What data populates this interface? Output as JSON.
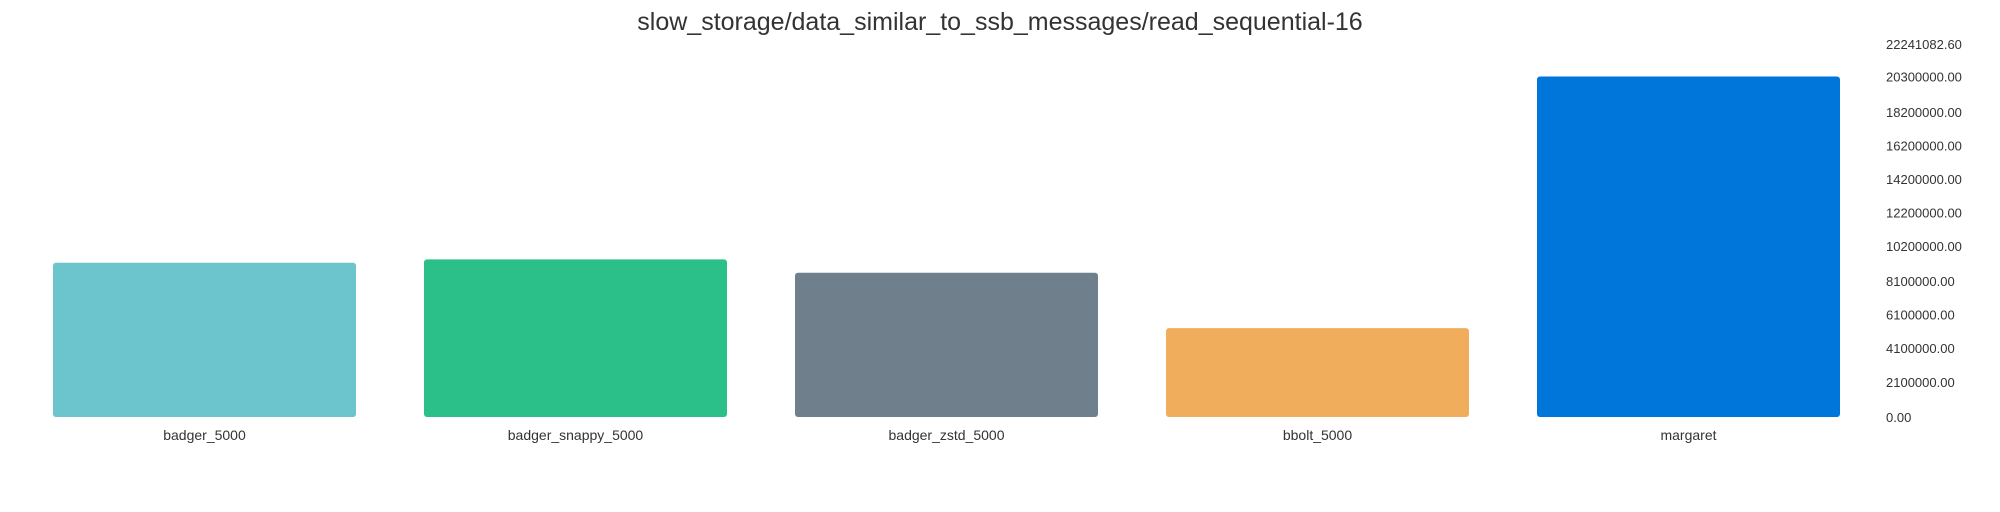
{
  "chart_data": {
    "type": "bar",
    "title": "slow_storage/data_similar_to_ssb_messages/read_sequential-16",
    "xlabel": "",
    "ylabel": "",
    "categories": [
      "badger_5000",
      "badger_snappy_5000",
      "badger_zstd_5000",
      "bbolt_5000",
      "margaret"
    ],
    "values": [
      9200000,
      9400000,
      8600000,
      5300000,
      20300000
    ],
    "colors": [
      "#6cc4cc",
      "#2bc08a",
      "#6f808c",
      "#f0ae5c",
      "#0075da"
    ],
    "ylim": [
      0,
      22241082.6
    ],
    "y_ticks": [
      {
        "value": 0,
        "label": "0.00"
      },
      {
        "value": 2100000,
        "label": "2100000.00"
      },
      {
        "value": 4100000,
        "label": "4100000.00"
      },
      {
        "value": 6100000,
        "label": "6100000.00"
      },
      {
        "value": 8100000,
        "label": "8100000.00"
      },
      {
        "value": 10200000,
        "label": "10200000.00"
      },
      {
        "value": 12200000,
        "label": "12200000.00"
      },
      {
        "value": 14200000,
        "label": "14200000.00"
      },
      {
        "value": 16200000,
        "label": "16200000.00"
      },
      {
        "value": 18200000,
        "label": "18200000.00"
      },
      {
        "value": 20300000,
        "label": "20300000.00"
      },
      {
        "value": 22241082.6,
        "label": "22241082.60"
      }
    ],
    "y_axis_position": "right",
    "grid": false,
    "legend": "none"
  }
}
